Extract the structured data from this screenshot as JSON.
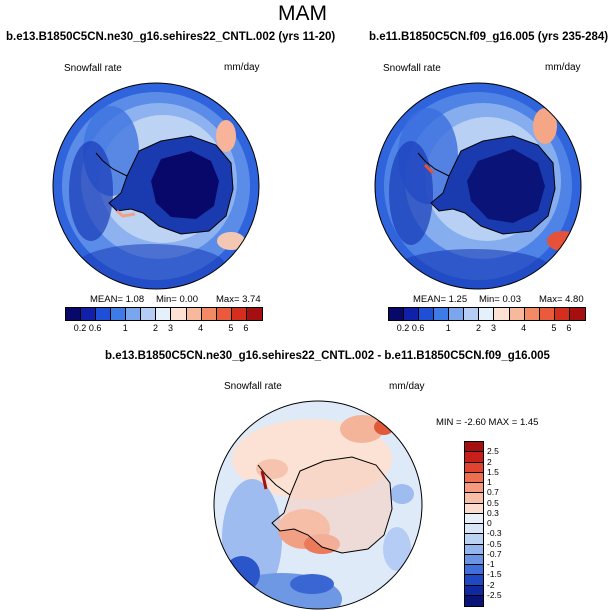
{
  "page": {
    "title": "MAM"
  },
  "panels": [
    {
      "title": "b.e13.B1850C5CN.ne30_g16.sehires22_CNTL.002 (yrs 11-20)",
      "variable": "Snowfall rate",
      "units": "mm/day",
      "stats": {
        "mean": "MEAN= 1.08",
        "min": "Min= 0.00",
        "max": "Max= 3.74"
      }
    },
    {
      "title": "b.e11.B1850C5CN.f09_g16.005 (yrs 235-284)",
      "variable": "Snowfall rate",
      "units": "mm/day",
      "stats": {
        "mean": "MEAN= 1.25",
        "min": "Min= 0.03",
        "max": "Max= 4.80"
      }
    }
  ],
  "diff": {
    "title": "b.e13.B1850C5CN.ne30_g16.sehires22_CNTL.002 - b.e11.B1850C5CN.f09_g16.005",
    "variable": "Snowfall rate",
    "units": "mm/day",
    "stats": "MIN = -2.60 MAX = 1.45"
  },
  "colorbar_abs": {
    "ticks": [
      "0.2",
      "0.6",
      "1",
      "2",
      "3",
      "4",
      "5",
      "6"
    ],
    "colors": [
      "#08086b",
      "#1020a8",
      "#1f4fd6",
      "#3f7be6",
      "#7aa6ee",
      "#b5cdf4",
      "#e6f0fa",
      "#fde2d4",
      "#f8b89b",
      "#f28a66",
      "#e95b3b",
      "#d62e1e",
      "#a50f0f"
    ]
  },
  "colorbar_diff": {
    "ticks": [
      "2.5",
      "2",
      "1.5",
      "1",
      "0.7",
      "0.5",
      "0.3",
      "0",
      "-0.3",
      "-0.5",
      "-0.7",
      "-1",
      "-1.5",
      "-2",
      "-2.5"
    ],
    "colors": [
      "#a50f0f",
      "#c81f1a",
      "#e04430",
      "#ee6e50",
      "#f59a7c",
      "#f9bea6",
      "#fcdccc",
      "#e8f0fa",
      "#d8e6f8",
      "#bcd2f3",
      "#94b6ec",
      "#6a95e4",
      "#3f6fda",
      "#1f48c4",
      "#1028a0",
      "#0a1478"
    ]
  }
}
